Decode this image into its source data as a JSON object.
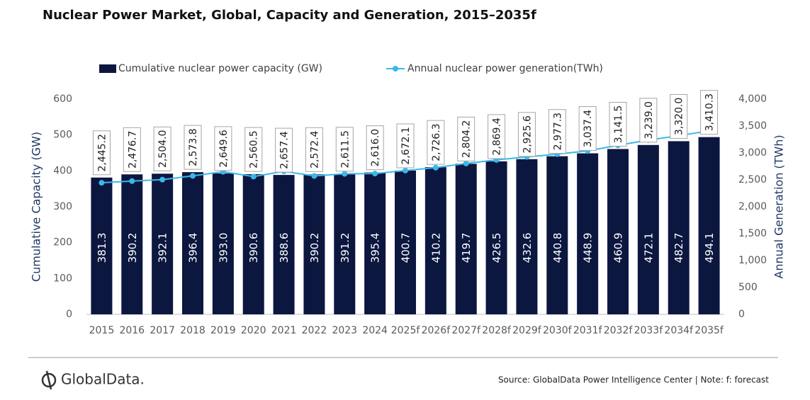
{
  "chart_data": {
    "type": "bar",
    "title": "Nuclear Power Market, Global, Capacity and Generation, 2015–2035f",
    "categories": [
      "2015",
      "2016",
      "2017",
      "2018",
      "2019",
      "2020",
      "2021",
      "2022",
      "2023",
      "2024",
      "2025f",
      "2026f",
      "2027f",
      "2028f",
      "2029f",
      "2030f",
      "2031f",
      "2032f",
      "2033f",
      "2034f",
      "2035f"
    ],
    "series": [
      {
        "name": "Cumulative nuclear power capacity (GW)",
        "type": "bar",
        "color": "#0c1740",
        "values": [
          381.3,
          390.2,
          392.1,
          396.4,
          393.0,
          390.6,
          388.6,
          390.2,
          391.2,
          395.4,
          400.7,
          410.2,
          419.7,
          426.5,
          432.6,
          440.8,
          448.9,
          460.9,
          472.1,
          482.7,
          494.1
        ],
        "value_labels": [
          "381.3",
          "390.2",
          "392.1",
          "396.4",
          "393.0",
          "390.6",
          "388.6",
          "390.2",
          "391.2",
          "395.4",
          "400.7",
          "410.2",
          "419.7",
          "426.5",
          "432.6",
          "440.8",
          "448.9",
          "460.9",
          "472.1",
          "482.7",
          "494.1"
        ]
      },
      {
        "name": "Annual nuclear power generation(TWh)",
        "type": "line",
        "color": "#3bb7ea",
        "axis": "y2",
        "values": [
          2445.2,
          2476.7,
          2504.0,
          2573.8,
          2649.6,
          2560.5,
          2657.4,
          2572.4,
          2611.5,
          2616.0,
          2672.1,
          2726.3,
          2804.2,
          2869.4,
          2925.6,
          2977.3,
          3037.4,
          3141.5,
          3239.0,
          3320.0,
          3410.3
        ],
        "value_labels": [
          "2,445.2",
          "2,476.7",
          "2,504.0",
          "2,573.8",
          "2,649.6",
          "2,560.5",
          "2,657.4",
          "2,572.4",
          "2,611.5",
          "2,616.0",
          "2,672.1",
          "2,726.3",
          "2,804.2",
          "2,869.4",
          "2,925.6",
          "2,977.3",
          "3,037.4",
          "3,141.5",
          "3,239.0",
          "3,320.0",
          "3,410.3"
        ]
      }
    ],
    "ylabel": "Cumulative Capacity (GW)",
    "y2label": "Annual Generation (TWh)",
    "ylim": [
      0,
      600
    ],
    "yticks": [
      0,
      100,
      200,
      300,
      400,
      500,
      600
    ],
    "y2lim": [
      0,
      4000
    ],
    "y2ticks": [
      0,
      500,
      {
        "value": 1000,
        "label": "1,000"
      },
      {
        "value": 1500,
        "label": "1,500"
      },
      {
        "value": 2000,
        "label": "2,000"
      },
      {
        "value": 2500,
        "label": "2,500"
      },
      {
        "value": 3000,
        "label": "3,000"
      },
      {
        "value": 3500,
        "label": "3,500"
      },
      {
        "value": 4000,
        "label": "4,000"
      }
    ]
  },
  "footer": {
    "brand": "GlobalData.",
    "source": "Source: GlobalData Power Intelligence Center | Note: f: forecast"
  }
}
